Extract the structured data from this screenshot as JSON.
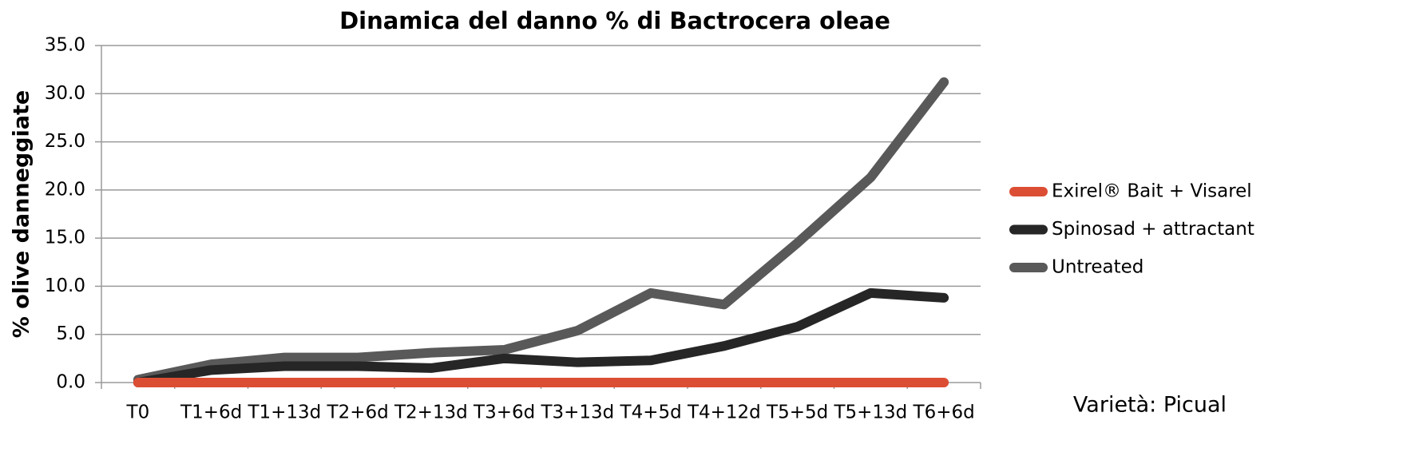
{
  "chart_data": {
    "type": "line",
    "title": "Dinamica del danno % di Bactrocera oleae",
    "y_label": "% olive danneggiate",
    "annotation": "Varietà: Picual",
    "categories": [
      "T0",
      "T1+6d",
      "T1+13d",
      "T2+6d",
      "T2+13d",
      "T3+6d",
      "T3+13d",
      "T4+5d",
      "T4+12d",
      "T5+5d",
      "T5+13d",
      "T6+6d"
    ],
    "series": [
      {
        "name": "Exirel® Bait + Visarel",
        "color": "#dc4e34",
        "values": [
          0,
          0,
          0,
          0,
          0,
          0,
          0,
          0,
          0,
          0,
          0,
          0
        ]
      },
      {
        "name": "Spinosad + attractant",
        "color": "#262626",
        "values": [
          0,
          1.3,
          1.7,
          1.7,
          1.5,
          2.5,
          2.1,
          2.3,
          3.8,
          5.8,
          9.3,
          8.8
        ]
      },
      {
        "name": "Untreated",
        "color": "#595959",
        "values": [
          0.3,
          1.9,
          2.6,
          2.6,
          3.1,
          3.4,
          5.4,
          9.3,
          8.1,
          14.5,
          21.3,
          31.2
        ]
      }
    ],
    "ylim": [
      0,
      35
    ],
    "yticks": [
      {
        "value": 0,
        "label": "0.0"
      },
      {
        "value": 5,
        "label": "5.0"
      },
      {
        "value": 10,
        "label": "10.0"
      },
      {
        "value": 15,
        "label": "15.0"
      },
      {
        "value": 20,
        "label": "20.0"
      },
      {
        "value": 25,
        "label": "25.0"
      },
      {
        "value": 30,
        "label": "30.0"
      },
      {
        "value": 35,
        "label": "35.0"
      }
    ],
    "grid": true,
    "legend": "right"
  }
}
